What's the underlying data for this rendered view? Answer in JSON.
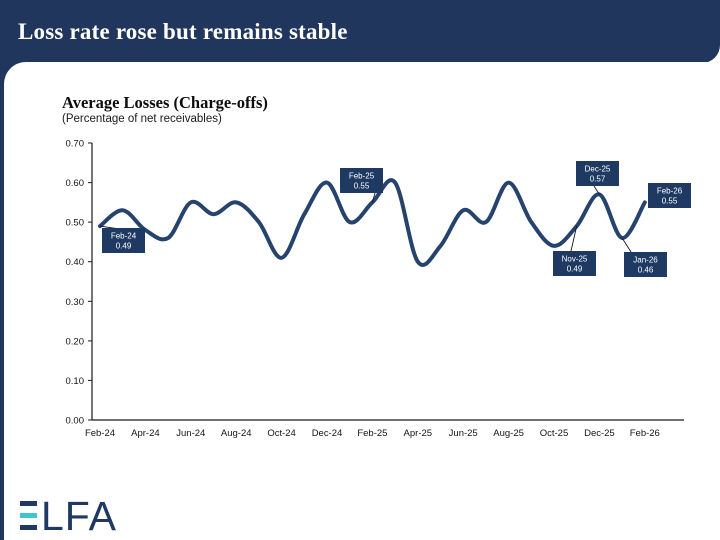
{
  "slide": {
    "title": "Loss rate rose but remains stable"
  },
  "chart": {
    "title": "Average Losses (Charge-offs)",
    "subtitle": "(Percentage of net receivables)"
  },
  "chart_data": {
    "type": "line",
    "title": "Average Losses (Charge-offs)",
    "subtitle": "(Percentage of net receivables)",
    "x": [
      "Feb-24",
      "Mar-24",
      "Apr-24",
      "May-24",
      "Jun-24",
      "Jul-24",
      "Aug-24",
      "Sep-24",
      "Oct-24",
      "Nov-24",
      "Dec-24",
      "Jan-25",
      "Feb-25",
      "Mar-25",
      "Apr-25",
      "May-25",
      "Jun-25",
      "Jul-25",
      "Aug-25",
      "Sep-25",
      "Oct-25",
      "Nov-25",
      "Dec-25",
      "Jan-26",
      "Feb-26"
    ],
    "values": [
      0.49,
      0.53,
      0.48,
      0.46,
      0.55,
      0.52,
      0.55,
      0.5,
      0.41,
      0.52,
      0.6,
      0.5,
      0.55,
      0.6,
      0.4,
      0.44,
      0.53,
      0.5,
      0.6,
      0.5,
      0.44,
      0.49,
      0.57,
      0.46,
      0.55
    ],
    "xtick_labels": [
      "Feb-24",
      "Apr-24",
      "Jun-24",
      "Aug-24",
      "Oct-24",
      "Dec-24",
      "Feb-25",
      "Apr-25",
      "Jun-25",
      "Aug-25",
      "Oct-25",
      "Dec-25",
      "Feb-26"
    ],
    "ytick_labels": [
      "0.70",
      "0.60",
      "0.50",
      "0.40",
      "0.30",
      "0.20",
      "0.10",
      "0.00"
    ],
    "ylim": [
      0,
      0.7
    ],
    "grid": false,
    "legend": false,
    "line_color": "#25436D",
    "label_bg": "#1E3A63",
    "callouts": [
      {
        "month": "Feb-24",
        "value": "0.49"
      },
      {
        "month": "Feb-25",
        "value": "0.55"
      },
      {
        "month": "Nov-25",
        "value": "0.49"
      },
      {
        "month": "Dec-25",
        "value": "0.57"
      },
      {
        "month": "Jan-26",
        "value": "0.46"
      },
      {
        "month": "Feb-26",
        "value": "0.55"
      }
    ]
  },
  "logo": {
    "name": "ELFA",
    "text_after_e": "LFA"
  },
  "colors": {
    "navy": "#20365C",
    "logo_navy": "#1F3864",
    "teal": "#3FC4D4",
    "line": "#25436D"
  }
}
